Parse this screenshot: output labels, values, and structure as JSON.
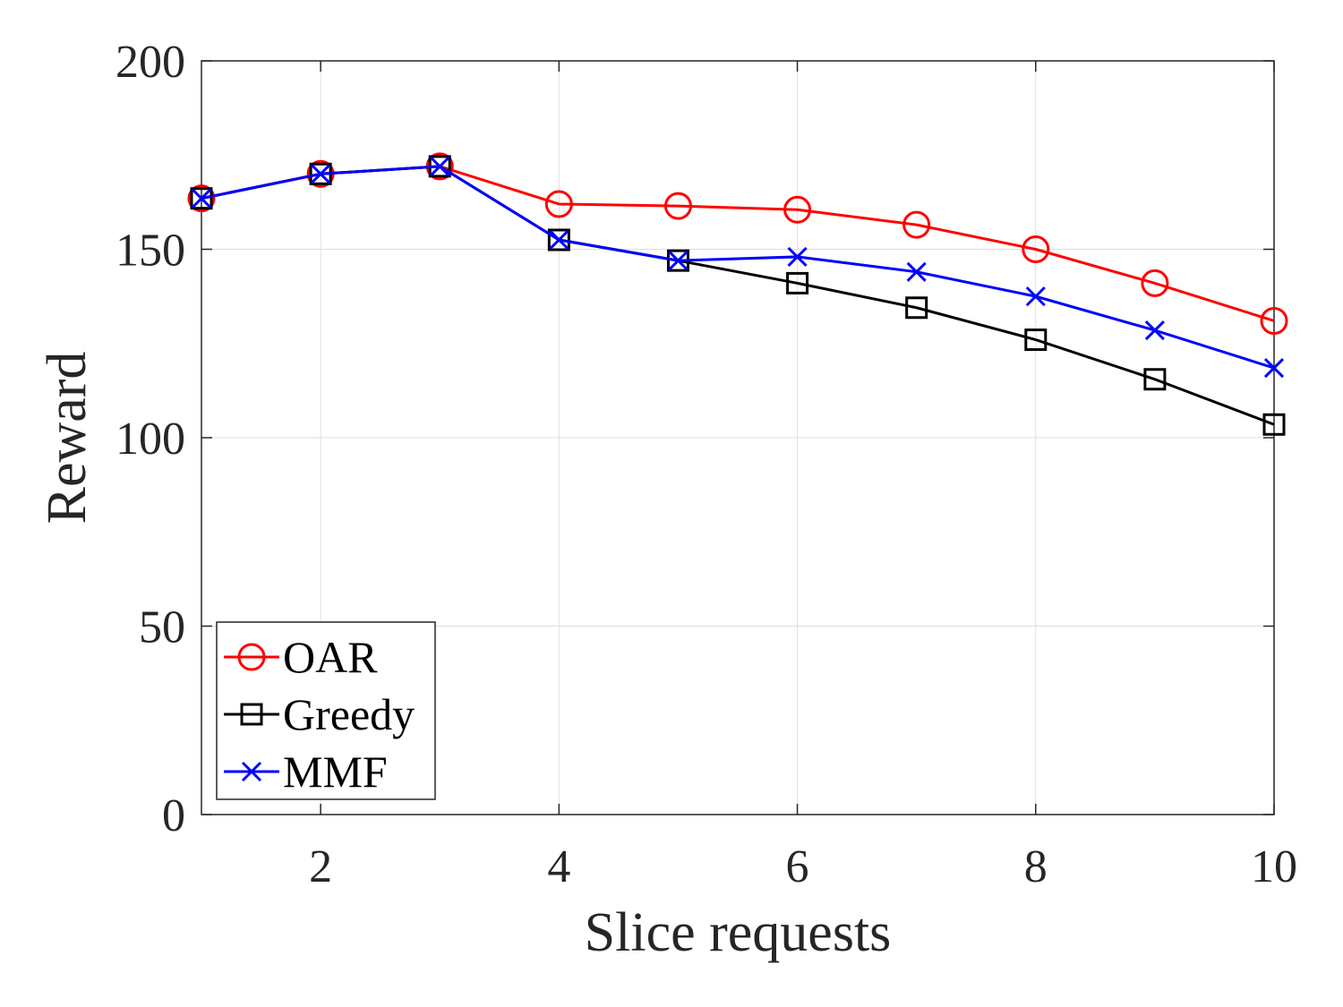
{
  "chart_data": {
    "type": "line",
    "title": "",
    "xlabel": "Slice requests",
    "ylabel": "Reward",
    "xlim": [
      1,
      10
    ],
    "ylim": [
      0,
      200
    ],
    "xticks": [
      2,
      4,
      6,
      8,
      10
    ],
    "yticks": [
      0,
      50,
      100,
      150,
      200
    ],
    "grid": true,
    "legend_position": "bottom-left",
    "x": [
      1,
      2,
      3,
      4,
      5,
      6,
      7,
      8,
      9,
      10
    ],
    "series": [
      {
        "name": "OAR",
        "color": "#ff0000",
        "marker": "circle",
        "values": [
          163.5,
          170,
          172,
          162,
          161.5,
          160.5,
          156.5,
          150,
          141,
          131
        ]
      },
      {
        "name": "Greedy",
        "color": "#000000",
        "marker": "square",
        "values": [
          163.5,
          170,
          172,
          152.5,
          147,
          141,
          134.5,
          126,
          115.5,
          103.5
        ]
      },
      {
        "name": "MMF",
        "color": "#0000ff",
        "marker": "x",
        "values": [
          163.5,
          170,
          172,
          152.5,
          147,
          148,
          144,
          137.5,
          128.5,
          118.5
        ]
      }
    ]
  }
}
